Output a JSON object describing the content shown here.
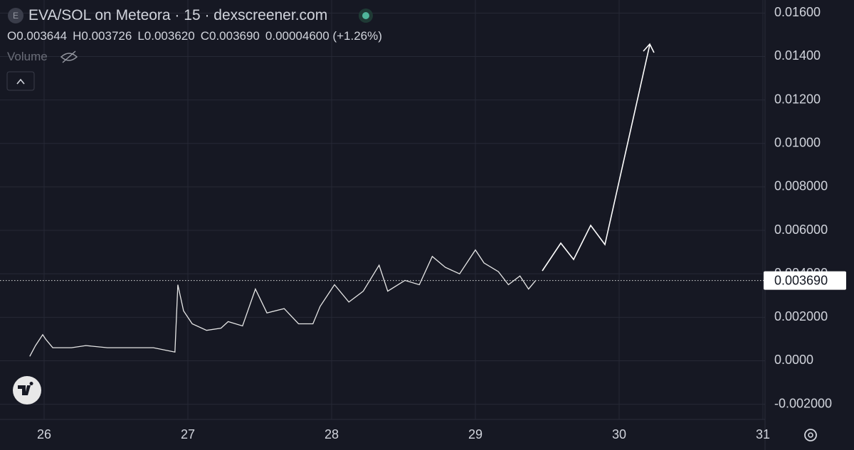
{
  "chart_data": {
    "type": "line",
    "badge": "E",
    "title": "EVA/SOL on Meteora · 15 · dexscreener.com",
    "ohlc": [
      {
        "key": "O",
        "value": "0.003644"
      },
      {
        "key": "H",
        "value": "0.003726"
      },
      {
        "key": "L",
        "value": "0.003620"
      },
      {
        "key": "C",
        "value": "0.003690"
      }
    ],
    "change": "0.00004600 (+1.26%)",
    "volume_label": "Volume",
    "x": [
      25.9,
      25.94,
      25.99,
      26.01,
      26.06,
      26.19,
      26.29,
      26.44,
      26.63,
      26.76,
      26.91,
      26.93,
      26.97,
      27.03,
      27.13,
      27.23,
      27.28,
      27.38,
      27.47,
      27.55,
      27.67,
      27.77,
      27.87,
      27.92,
      28.02,
      28.12,
      28.22,
      28.33,
      28.39,
      28.51,
      28.61,
      28.7,
      28.79,
      28.89,
      29.0,
      29.06,
      29.16,
      29.23,
      29.31,
      29.37,
      29.42
    ],
    "values": [
      0.0002,
      0.0007,
      0.0012,
      0.001,
      0.0006,
      0.0006,
      0.0007,
      0.0006,
      0.0006,
      0.0006,
      0.0004,
      0.0035,
      0.0023,
      0.0017,
      0.0014,
      0.0015,
      0.0018,
      0.0016,
      0.0033,
      0.0022,
      0.0024,
      0.0017,
      0.0017,
      0.0025,
      0.0035,
      0.0027,
      0.0032,
      0.0044,
      0.0032,
      0.0037,
      0.0035,
      0.0048,
      0.0043,
      0.004,
      0.0051,
      0.0045,
      0.0041,
      0.0035,
      0.0039,
      0.0033,
      0.0037
    ],
    "color": "#e6e6e6",
    "last_price": {
      "value": 0.00369,
      "label": "0.003690"
    },
    "xlim": [
      25.693,
      31.015
    ],
    "xticks": [
      26,
      27,
      28,
      29,
      30,
      31
    ],
    "ylim": [
      -0.0027,
      0.0166
    ],
    "yticks": [
      {
        "value": -0.002,
        "label": "-0.002000"
      },
      {
        "value": 0,
        "label": "0.0000"
      },
      {
        "value": 0.002,
        "label": "0.002000"
      },
      {
        "value": 0.004,
        "label": "0.004000"
      },
      {
        "value": 0.006,
        "label": "0.006000"
      },
      {
        "value": 0.008,
        "label": "0.008000"
      },
      {
        "value": 0.01,
        "label": "0.01000"
      },
      {
        "value": 0.012,
        "label": "0.01200"
      },
      {
        "value": 0.014,
        "label": "0.01400"
      },
      {
        "value": 0.016,
        "label": "0.01600"
      }
    ],
    "grid": true
  }
}
